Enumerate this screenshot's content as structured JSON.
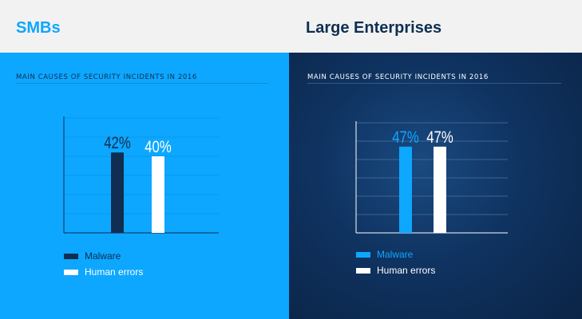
{
  "colors": {
    "top_band": "#f2f2f2",
    "smb_title": "#0da7ff",
    "enterprise_title": "#0f2e52",
    "smb_panel": "#0da7ff",
    "smb_text": "#0f2e52",
    "smb_rule": "#0a8fd9",
    "smb_grid": "#0b97e8",
    "smb_axis": "#0f2e52",
    "malware_smb": "#0f2e52",
    "human_errors": "#ffffff",
    "enterprise_panel": "#0f3361",
    "enterprise_text": "#ffffff",
    "enterprise_rule": "#2e5a8a",
    "enterprise_grid": "#3a6696",
    "enterprise_axis": "#ffffff",
    "malware_enterprise": "#0da7ff",
    "enterprise_label_malware": "#0da7ff"
  },
  "header": {
    "smb_title": "SMBs",
    "enterprise_title": "Large Enterprises"
  },
  "smb": {
    "subtitle": "MAIN CAUSES OF SECURITY INCIDENTS IN 2016",
    "legend": {
      "malware": "Malware",
      "human_errors": "Human errors"
    }
  },
  "enterprise": {
    "subtitle": "MAIN CAUSES OF SECURITY INCIDENTS IN 2016",
    "legend": {
      "malware": "Malware",
      "human_errors": "Human errors"
    }
  },
  "chart_data": [
    {
      "type": "bar",
      "panel": "SMBs",
      "title": "MAIN CAUSES OF SECURITY INCIDENTS IN 2016",
      "categories": [
        "Malware",
        "Human errors"
      ],
      "values": [
        42,
        40
      ],
      "value_labels": [
        "42%",
        "40%"
      ],
      "ylim": [
        0,
        60
      ],
      "grid": true,
      "legend_placement": "bottom-left"
    },
    {
      "type": "bar",
      "panel": "Large Enterprises",
      "title": "MAIN CAUSES OF SECURITY INCIDENTS IN 2016",
      "categories": [
        "Malware",
        "Human errors"
      ],
      "values": [
        47,
        47
      ],
      "value_labels": [
        "47%",
        "47%"
      ],
      "ylim": [
        0,
        60
      ],
      "grid": true,
      "legend_placement": "bottom-left"
    }
  ]
}
